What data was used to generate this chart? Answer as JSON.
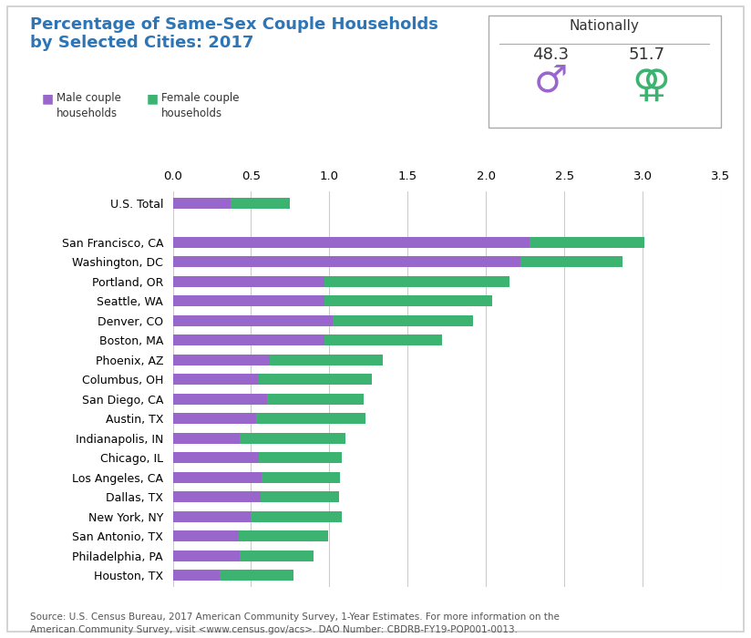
{
  "title_line1": "Percentage of Same-Sex Couple Households",
  "title_line2": "by Selected Cities: 2017",
  "title_color": "#2E75B6",
  "background_color": "#FFFFFF",
  "border_color": "#CCCCCC",
  "male_color": "#9966CC",
  "female_color": "#3CB371",
  "xlim": [
    0,
    3.5
  ],
  "xticks": [
    0.0,
    0.5,
    1.0,
    1.5,
    2.0,
    2.5,
    3.0,
    3.5
  ],
  "nationally_male": "48.3",
  "nationally_female": "51.7",
  "categories": [
    "U.S. Total",
    "",
    "San Francisco, CA",
    "Washington, DC",
    "Portland, OR",
    "Seattle, WA",
    "Denver, CO",
    "Boston, MA",
    "Phoenix, AZ",
    "Columbus, OH",
    "San Diego, CA",
    "Austin, TX",
    "Indianapolis, IN",
    "Chicago, IL",
    "Los Angeles, CA",
    "Dallas, TX",
    "New York, NY",
    "San Antonio, TX",
    "Philadelphia, PA",
    "Houston, TX"
  ],
  "male_values": [
    0.37,
    0,
    2.28,
    2.22,
    0.97,
    0.97,
    1.02,
    0.97,
    0.62,
    0.55,
    0.6,
    0.53,
    0.43,
    0.55,
    0.57,
    0.56,
    0.5,
    0.42,
    0.43,
    0.3
  ],
  "female_values": [
    0.38,
    0,
    0.73,
    0.65,
    1.18,
    1.07,
    0.9,
    0.75,
    0.72,
    0.72,
    0.62,
    0.7,
    0.67,
    0.53,
    0.5,
    0.5,
    0.58,
    0.57,
    0.47,
    0.47
  ],
  "source_text": "Source: U.S. Census Bureau, 2017 American Community Survey, 1-Year Estimates. For more information on the\nAmerican Community Survey, visit <www.census.gov/acs>. DAO Number: CBDRB-FY19-POP001-0013.",
  "legend_male_label": "Male couple\nhouseholds",
  "legend_female_label": "Female couple\nhouseholds"
}
